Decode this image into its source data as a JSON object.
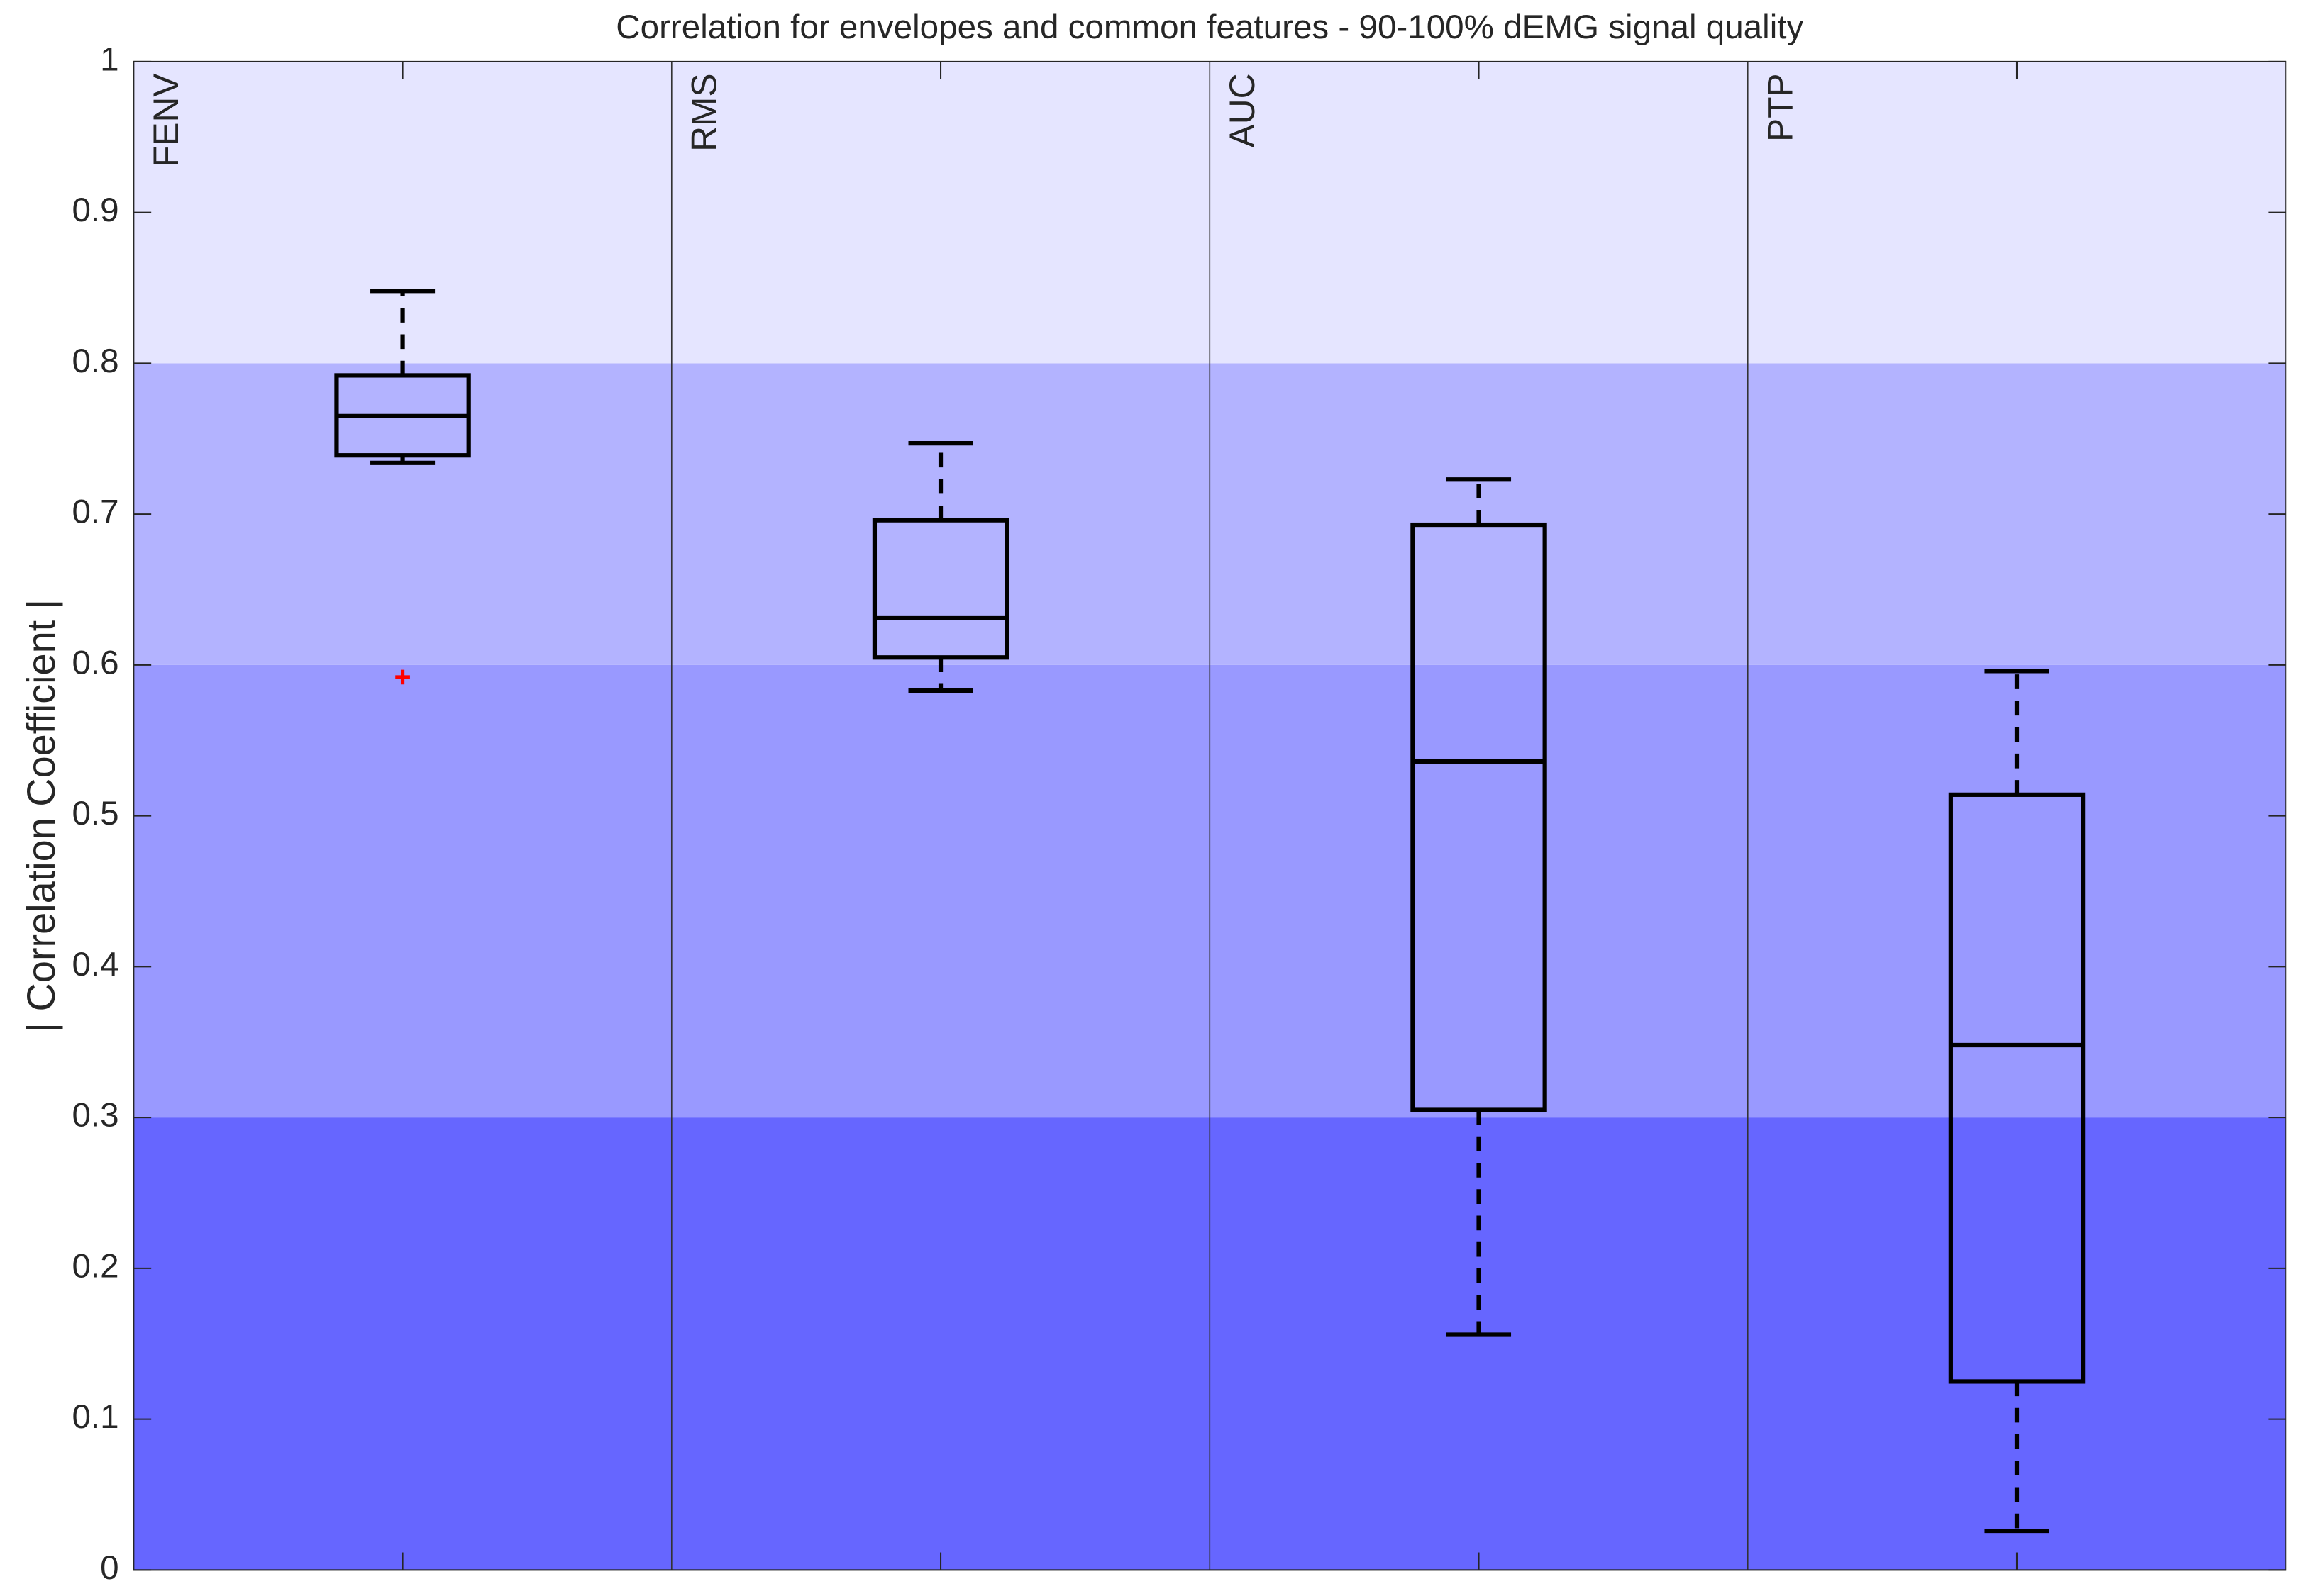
{
  "chart_data": {
    "type": "box",
    "title": "Correlation for envelopes and common features - 90-100% dEMG signal quality",
    "ylabel": "| Correlation Coefficient |",
    "categories": [
      "FENV",
      "RMS",
      "AUC",
      "PTP"
    ],
    "boxes": [
      {
        "whisker_low": 0.734,
        "q1": 0.739,
        "median": 0.765,
        "q3": 0.792,
        "whisker_high": 0.848,
        "outliers": [
          0.592
        ]
      },
      {
        "whisker_low": 0.583,
        "q1": 0.605,
        "median": 0.631,
        "q3": 0.696,
        "whisker_high": 0.747,
        "outliers": []
      },
      {
        "whisker_low": 0.156,
        "q1": 0.305,
        "median": 0.536,
        "q3": 0.693,
        "whisker_high": 0.723,
        "outliers": []
      },
      {
        "whisker_low": 0.026,
        "q1": 0.125,
        "median": 0.348,
        "q3": 0.514,
        "whisker_high": 0.596,
        "outliers": []
      }
    ],
    "box_color": "#000000",
    "outlier_color": "#ff0000",
    "bands": [
      {
        "from": 0,
        "to": 0.3,
        "color": "#6666ff"
      },
      {
        "from": 0.3,
        "to": 0.6,
        "color": "#9999ff"
      },
      {
        "from": 0.6,
        "to": 0.8,
        "color": "#b3b3ff"
      },
      {
        "from": 0.8,
        "to": 1,
        "color": "#e5e5ff"
      }
    ],
    "ylim": [
      0,
      1
    ],
    "yticks": [
      0,
      0.1,
      0.2,
      0.3,
      0.4,
      0.5,
      0.6,
      0.7,
      0.8,
      0.9,
      1
    ]
  }
}
